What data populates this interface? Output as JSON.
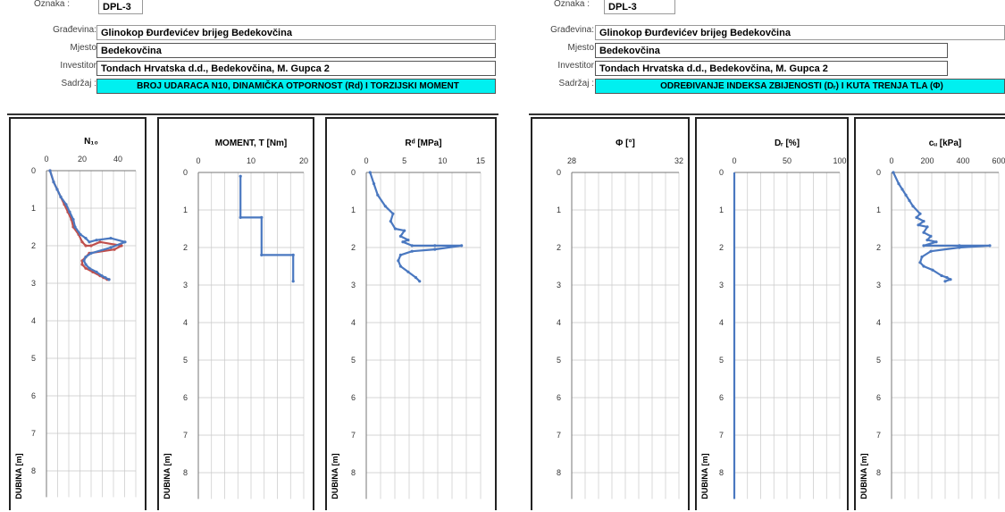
{
  "headers": [
    {
      "rows": [
        {
          "label": "Oznaka :",
          "value": "DPL-3"
        },
        {
          "label": "Građevina:",
          "value": "Glinokop Đurđevićev brijeg Bedekovčina"
        },
        {
          "label": "Mjesto",
          "value": "Bedekovčina"
        },
        {
          "label": "Investitor",
          "value": "Tondach Hrvatska d.d., Bedekovčina, M. Gupca 2"
        },
        {
          "label": "Sadržaj :",
          "value": "BROJ UDARACA N10, DINAMIČKA OTPORNOST (Rd) I TORZIJSKI MOMENT"
        }
      ]
    },
    {
      "rows": [
        {
          "label": "Oznaka :",
          "value": "DPL-3"
        },
        {
          "label": "Građevina:",
          "value": "Glinokop Đurđevićev brijeg Bedekovčina"
        },
        {
          "label": "Mjesto",
          "value": "Bedekovčina"
        },
        {
          "label": "Investitor",
          "value": "Tondach Hrvatska d.d., Bedekovčina, M. Gupca 2"
        },
        {
          "label": "Sadržaj :",
          "value": "ODREĐIVANJE INDEKSA ZBIJENOSTI (Dᵣ) I KUTA TRENJA TLA (Φ)"
        }
      ]
    }
  ],
  "colors": {
    "cyan_band": "#00f0f0",
    "series_blue": "#4a78c0",
    "series_red": "#c0504d",
    "grid": "#c8c8c8"
  },
  "chart_data": [
    {
      "type": "line",
      "title": "N₁₀",
      "ylabel": "DUBINA [m]",
      "xlim": [
        0,
        50
      ],
      "ylim": [
        0,
        8.7
      ],
      "xticks": [
        0,
        20,
        40
      ],
      "yticks": [
        0,
        1,
        2,
        3,
        4,
        5,
        6,
        7,
        8
      ],
      "grid": true,
      "series": [
        {
          "color": "#c0504d",
          "x": [
            2,
            4,
            6,
            8,
            10,
            12,
            14,
            15,
            18,
            20,
            22,
            25,
            30,
            42,
            38,
            24,
            22,
            20,
            20,
            22,
            26,
            30,
            32,
            34,
            35
          ],
          "y": [
            0.0,
            0.3,
            0.5,
            0.7,
            0.9,
            1.1,
            1.3,
            1.5,
            1.7,
            1.9,
            2.0,
            2.0,
            1.9,
            2.0,
            2.1,
            2.2,
            2.3,
            2.4,
            2.5,
            2.6,
            2.7,
            2.8,
            2.85,
            2.9,
            2.9
          ]
        },
        {
          "color": "#4a78c0",
          "x": [
            2,
            4,
            6,
            8,
            11,
            13,
            15,
            16,
            19,
            22,
            24,
            28,
            36,
            44,
            36,
            25,
            22,
            21,
            22,
            24,
            28,
            31,
            33,
            35,
            35
          ],
          "y": [
            0.0,
            0.3,
            0.5,
            0.7,
            0.9,
            1.1,
            1.3,
            1.5,
            1.7,
            1.8,
            1.9,
            1.85,
            1.8,
            1.9,
            2.05,
            2.2,
            2.3,
            2.4,
            2.5,
            2.6,
            2.7,
            2.8,
            2.85,
            2.9,
            2.9
          ]
        }
      ]
    },
    {
      "type": "line",
      "title": "MOMENT, T  [Nm]",
      "ylabel": "DUBINA [m]",
      "xlim": [
        0,
        20
      ],
      "ylim": [
        0,
        8.7
      ],
      "xticks": [
        0,
        10,
        20
      ],
      "yticks": [
        0,
        1,
        2,
        3,
        4,
        5,
        6,
        7,
        8
      ],
      "grid": true,
      "series": [
        {
          "color": "#4a78c0",
          "x": [
            8,
            8,
            12,
            12,
            18,
            18
          ],
          "y": [
            0.1,
            1.2,
            1.2,
            2.2,
            2.2,
            2.9
          ]
        }
      ]
    },
    {
      "type": "line",
      "title": "Rᵈ  [MPa]",
      "ylabel": "DUBINA [m]",
      "xlim": [
        0,
        15
      ],
      "ylim": [
        0,
        8.7
      ],
      "xticks": [
        0,
        5,
        10,
        15
      ],
      "yticks": [
        0,
        1,
        2,
        3,
        4,
        5,
        6,
        7,
        8
      ],
      "grid": true,
      "series": [
        {
          "color": "#4a78c0",
          "x": [
            0.5,
            1.0,
            1.5,
            2.5,
            3.5,
            3.2,
            3.8,
            5.0,
            4.5,
            5.5,
            4.8,
            6.0,
            9.0,
            12.5,
            9.0,
            6.0,
            4.5,
            4.2,
            4.5,
            5.5,
            6.5,
            7.0
          ],
          "y": [
            0.0,
            0.3,
            0.6,
            0.9,
            1.1,
            1.3,
            1.5,
            1.55,
            1.7,
            1.8,
            1.85,
            1.95,
            1.95,
            1.95,
            2.05,
            2.1,
            2.2,
            2.35,
            2.5,
            2.65,
            2.8,
            2.9
          ]
        }
      ]
    },
    {
      "type": "line",
      "title": "Φ [°]",
      "ylabel": "",
      "xlim": [
        28,
        32
      ],
      "ylim": [
        0,
        8.7
      ],
      "xticks": [
        28,
        32
      ],
      "yticks": [
        0,
        1,
        2,
        3,
        4,
        5,
        6,
        7,
        8
      ],
      "grid": true,
      "series": []
    },
    {
      "type": "line",
      "title": "Dᵣ [%]",
      "ylabel": "DUBINA [m]",
      "xlim": [
        0,
        100
      ],
      "ylim": [
        0,
        8.7
      ],
      "xticks": [
        0,
        50,
        100
      ],
      "yticks": [
        0,
        1,
        2,
        3,
        4,
        5,
        6,
        7,
        8
      ],
      "grid": true,
      "series": [
        {
          "color": "#4a78c0",
          "x": [
            0,
            0
          ],
          "y": [
            0.0,
            8.7
          ]
        }
      ]
    },
    {
      "type": "line",
      "title": "cᵤ [kPa]",
      "ylabel": "DUBINA [m]",
      "xlim": [
        0,
        600
      ],
      "ylim": [
        0,
        8.7
      ],
      "xticks": [
        0,
        200,
        400,
        600
      ],
      "yticks": [
        0,
        1,
        2,
        3,
        4,
        5,
        6,
        7,
        8
      ],
      "grid": true,
      "series": [
        {
          "color": "#4a78c0",
          "x": [
            10,
            40,
            60,
            80,
            100,
            120,
            160,
            140,
            180,
            150,
            200,
            180,
            220,
            200,
            250,
            180,
            380,
            550,
            380,
            220,
            170,
            160,
            180,
            230,
            280,
            310,
            330,
            300
          ],
          "y": [
            0.0,
            0.3,
            0.45,
            0.6,
            0.75,
            0.9,
            1.1,
            1.2,
            1.3,
            1.4,
            1.45,
            1.6,
            1.7,
            1.8,
            1.85,
            1.95,
            1.95,
            1.95,
            2.0,
            2.1,
            2.25,
            2.4,
            2.5,
            2.6,
            2.75,
            2.8,
            2.85,
            2.9
          ]
        }
      ]
    }
  ]
}
